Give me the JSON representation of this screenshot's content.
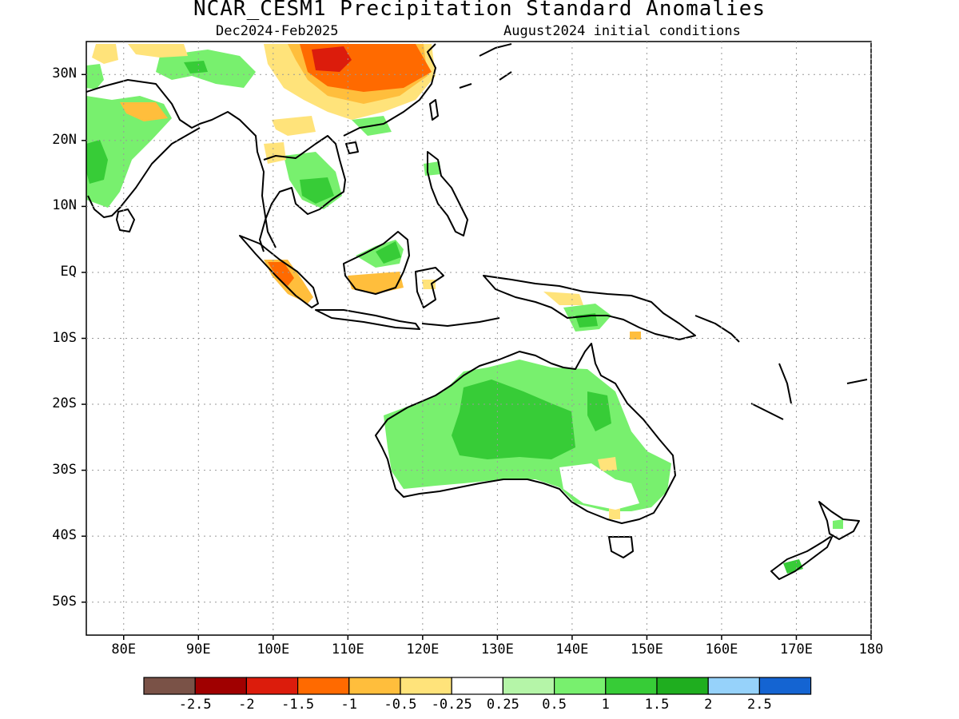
{
  "title": "NCAR_CESM1 Precipitation Standard Anomalies",
  "subtitle_left": "Dec2024-Feb2025",
  "subtitle_right": "August2024 initial conditions",
  "map": {
    "lon_range": [
      75,
      180
    ],
    "lat_range": [
      -55,
      35
    ],
    "grid": "dotted"
  },
  "lat_labels": [
    "30N",
    "20N",
    "10N",
    "EQ",
    "10S",
    "20S",
    "30S",
    "40S",
    "50S"
  ],
  "lon_labels": [
    "80E",
    "90E",
    "100E",
    "110E",
    "120E",
    "130E",
    "140E",
    "150E",
    "160E",
    "170E",
    "180"
  ],
  "colorbar": {
    "colors": [
      "#7a5247",
      "#a00000",
      "#dc1c0c",
      "#ff6a00",
      "#ffbe3c",
      "#ffe37a",
      "#ffffff",
      "#b5f5a8",
      "#78f06e",
      "#37cc37",
      "#1fae1f",
      "#96d2fa",
      "#1464d2"
    ],
    "tick_labels": [
      "-2.5",
      "-2",
      "-1.5",
      "-1",
      "-0.5",
      "-0.25",
      "0.25",
      "0.5",
      "1",
      "1.5",
      "2",
      "2.5"
    ]
  }
}
